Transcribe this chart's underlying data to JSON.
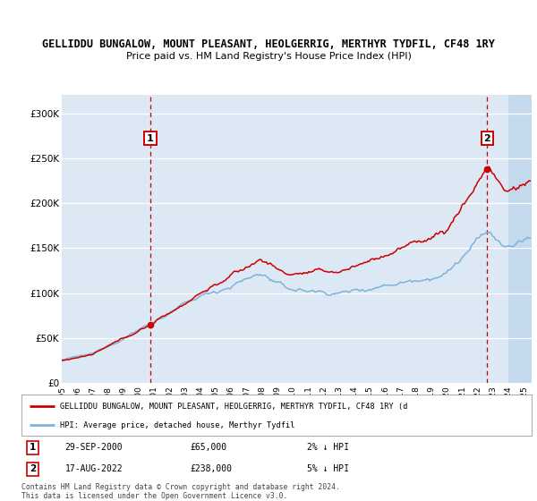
{
  "title_line1": "GELLIDDU BUNGALOW, MOUNT PLEASANT, HEOLGERRIG, MERTHYR TYDFIL, CF48 1RY",
  "title_line2": "Price paid vs. HM Land Registry's House Price Index (HPI)",
  "ytick_labels": [
    "£0",
    "£50K",
    "£100K",
    "£150K",
    "£200K",
    "£250K",
    "£300K"
  ],
  "yticks": [
    0,
    50000,
    100000,
    150000,
    200000,
    250000,
    300000
  ],
  "xlim_start": 1995.0,
  "xlim_end": 2025.5,
  "ylim_min": 0,
  "ylim_max": 320000,
  "sale1_date": 2000.75,
  "sale1_price": 65000,
  "sale2_date": 2022.62,
  "sale2_price": 238000,
  "bg_color": "#dce9f5",
  "hatch_color": "#c0d8ec",
  "line_color_property": "#cc0000",
  "line_color_hpi": "#7fb3d9",
  "legend_label_property": "GELLIDDU BUNGALOW, MOUNT PLEASANT, HEOLGERRIG, MERTHYR TYDFIL, CF48 1RY (d",
  "legend_label_hpi": "HPI: Average price, detached house, Merthyr Tydfil",
  "footer_text": "Contains HM Land Registry data © Crown copyright and database right 2024.\nThis data is licensed under the Open Government Licence v3.0.",
  "annotation1_date_str": "29-SEP-2000",
  "annotation1_price_str": "£65,000",
  "annotation1_pct": "2% ↓ HPI",
  "annotation2_date_str": "17-AUG-2022",
  "annotation2_price_str": "£238,000",
  "annotation2_pct": "5% ↓ HPI"
}
